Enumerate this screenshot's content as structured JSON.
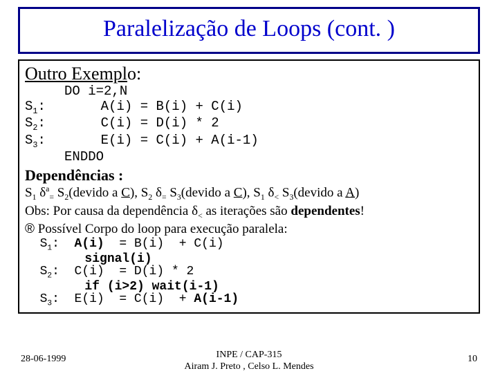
{
  "title": "Paralelização de Loops (cont. )",
  "section1_heading_main": "Outro Exempl",
  "section1_heading_tail": "o:",
  "code_line0": "     DO i=2,N",
  "code_s1_label": "S",
  "code_s1_sub": "1",
  "code_s1_rest": ":       A(i) = B(i) + C(i)",
  "code_s2_label": "S",
  "code_s2_sub": "2",
  "code_s2_rest": ":       C(i) = D(i) * 2",
  "code_s3_label": "S",
  "code_s3_sub": "3",
  "code_s3_rest": ":       E(i) = C(i) + A(i-1)",
  "code_line4": "     ENDDO",
  "deps_heading": "Dependências :",
  "dep1_a": "S",
  "dep1_b": "1",
  "dep1_c": " δ",
  "dep1_d": "a",
  "dep1_e": "=",
  "dep1_f": " S",
  "dep1_g": "2",
  "dep1_h": "(devido a ",
  "dep1_i": "C",
  "dep1_j": "),  S",
  "dep1_k": "2",
  "dep1_l": " δ",
  "dep1_m": "=",
  "dep1_n": " S",
  "dep1_o": "3",
  "dep1_p": "(devido a ",
  "dep1_q": "C",
  "dep1_r": "),  S",
  "dep1_s": "1",
  "dep1_t": " δ",
  "dep1_u": "<",
  "dep1_v": " S",
  "dep1_w": "3",
  "dep1_x": "(devido a ",
  "dep1_y": "A",
  "dep1_z": ")",
  "obs_a": "Obs:  Por causa da dependência δ",
  "obs_b": "<",
  "obs_c": " as iterações são ",
  "obs_d": "dependentes",
  "obs_e": "!",
  "arrow": "®",
  "possivel": " Possível Corpo do loop para execução paralela:",
  "pcode_l1a": "  S",
  "pcode_l1b": "1",
  "pcode_l1c": ":  ",
  "pcode_l1d": "A(i)",
  "pcode_l1e": "  = B(i)  + C(i)",
  "pcode_sig": "        signal(i)",
  "pcode_l2a": "  S",
  "pcode_l2b": "2",
  "pcode_l2c": ":  C(i)  = D(i) * 2",
  "pcode_wait": "        if (i>2) wait(i-1)",
  "pcode_l3a": "  S",
  "pcode_l3b": "3",
  "pcode_l3c": ":  E(i)  = C(i)  + ",
  "pcode_l3d": "A(i-1)",
  "footer_date": "28-06-1999",
  "footer_center1": "INPE / CAP-315",
  "footer_center2": "Airam J. Preto , Celso L. Mendes",
  "footer_page": "10",
  "colors": {
    "title": "#0000cc",
    "title_border": "#000088",
    "text": "#000000",
    "bg": "#ffffff"
  }
}
